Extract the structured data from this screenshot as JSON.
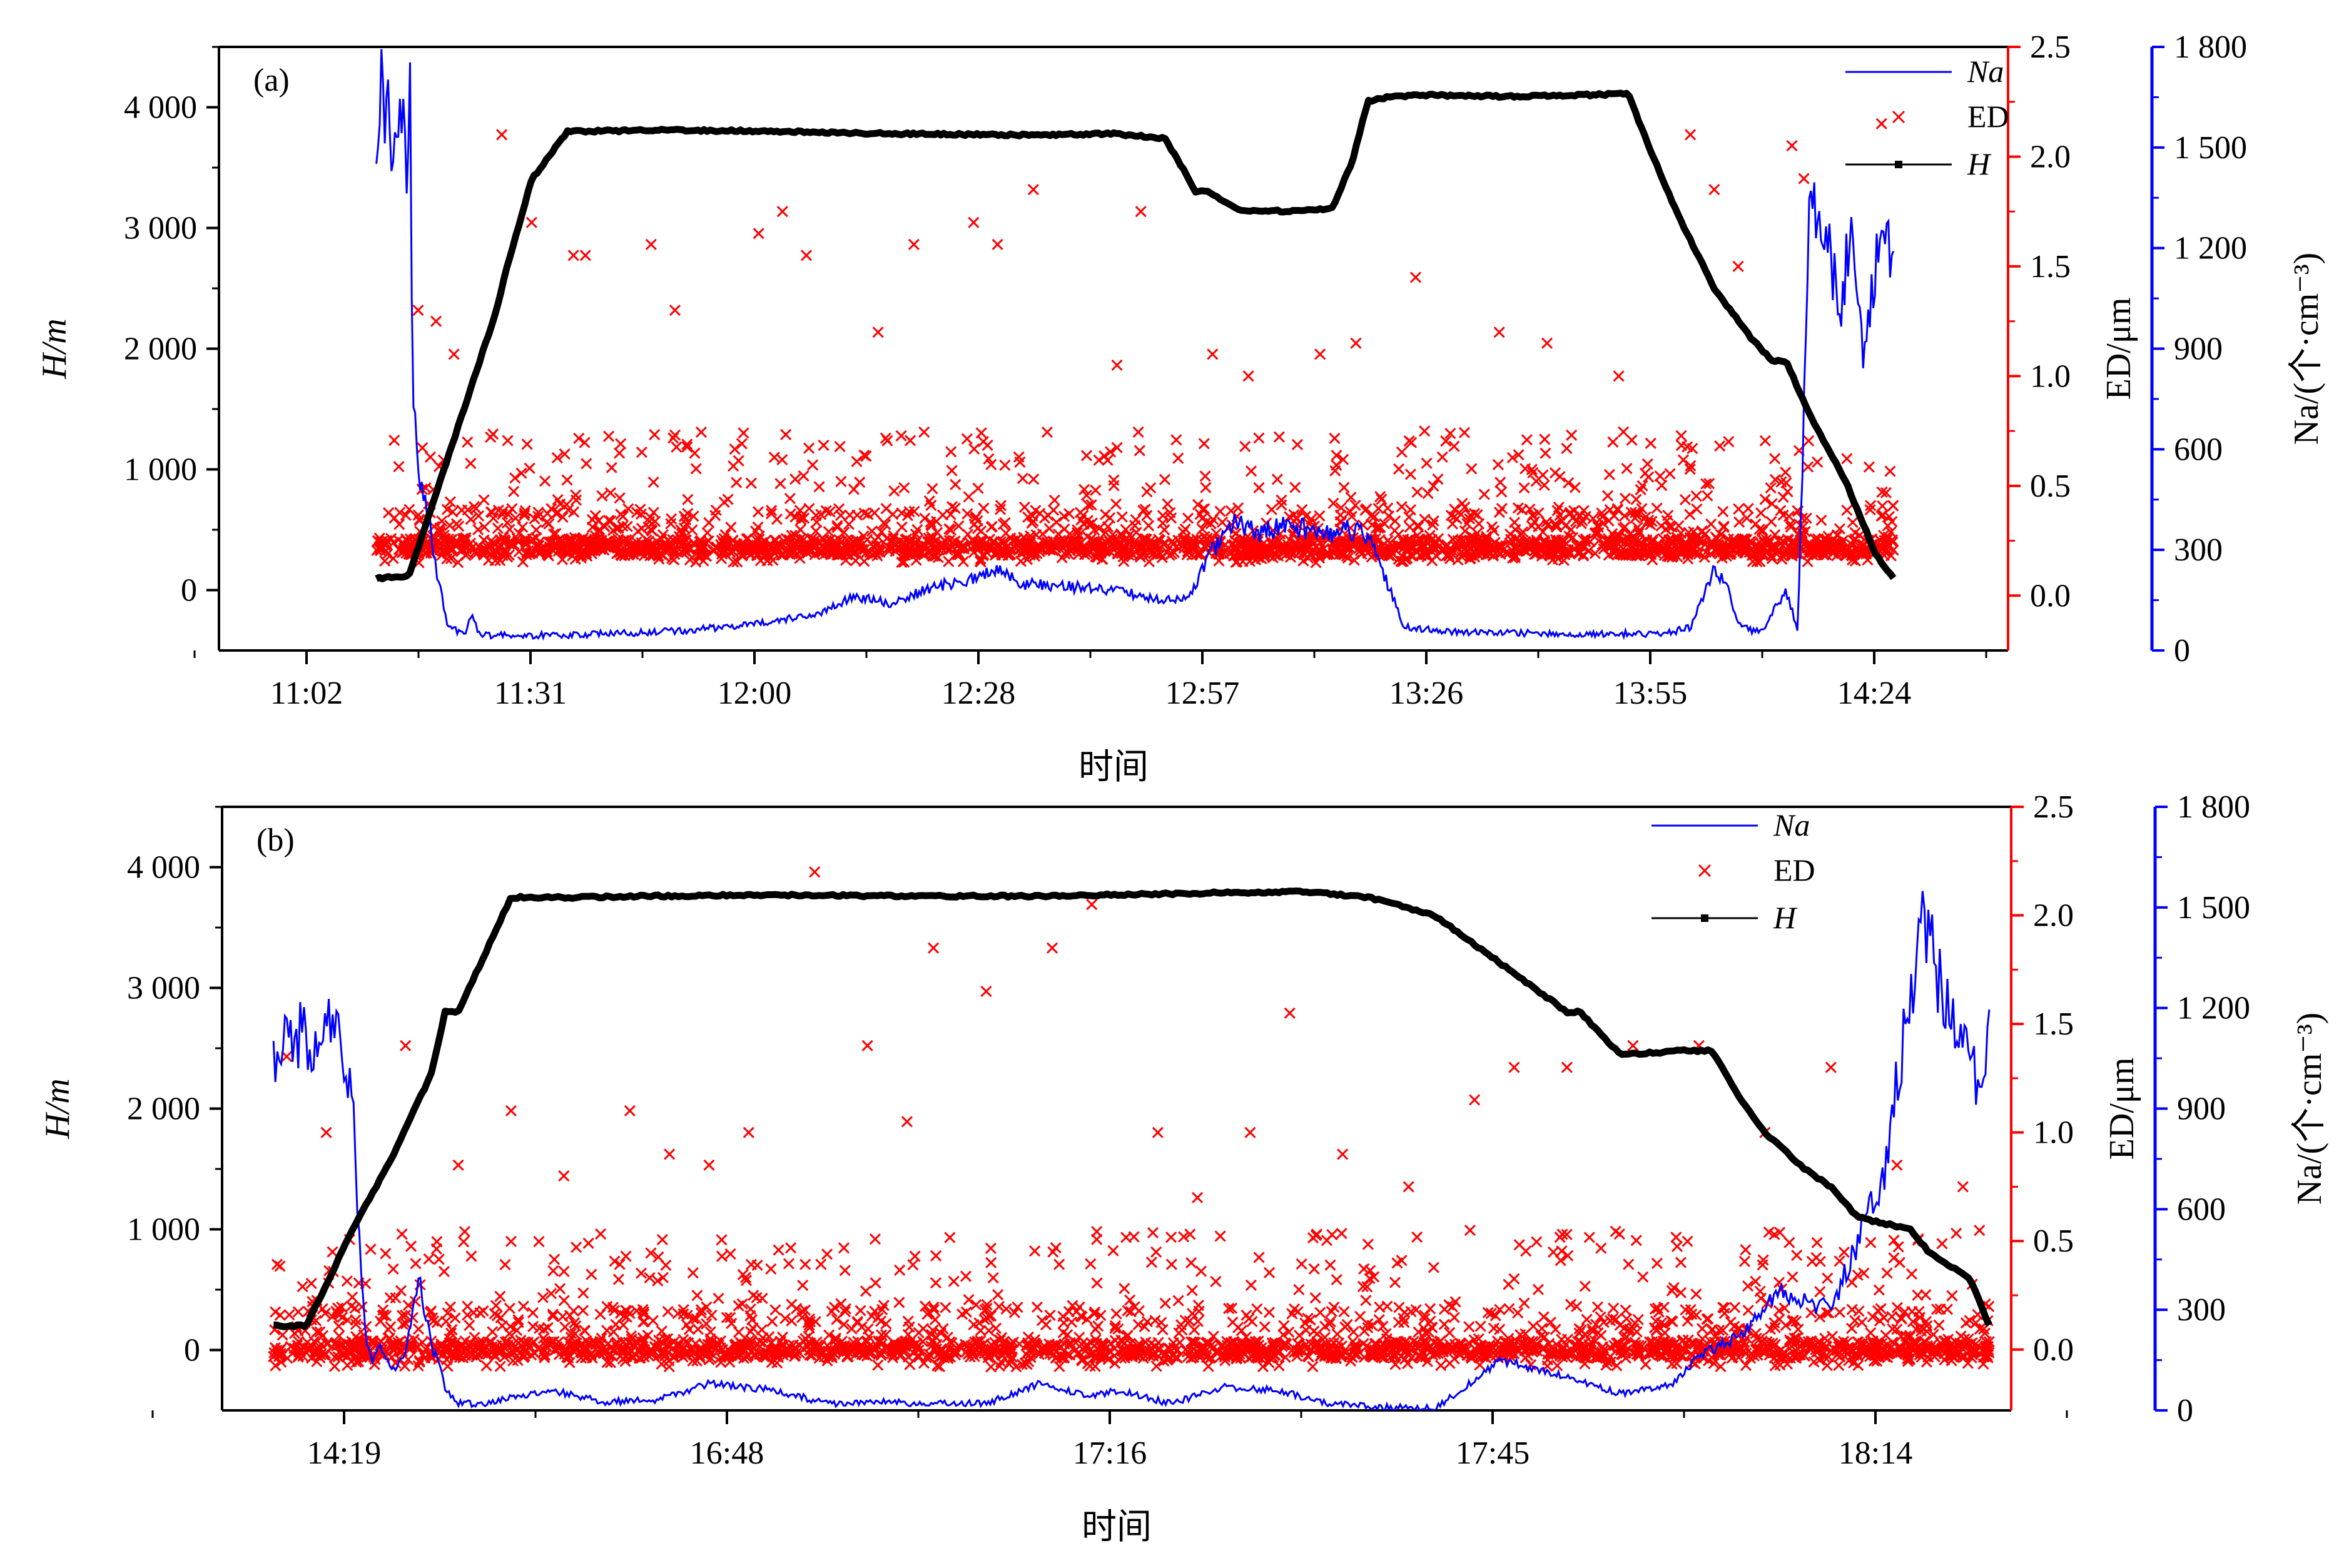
{
  "colors": {
    "Na": "#0000ff",
    "ED": "#ff0000",
    "H": "#000000",
    "axis": "#000000"
  },
  "chart_data": [
    {
      "type": "line",
      "panel_label": "(a)",
      "xlabel": "时间",
      "ylabel_left": "H/m",
      "ylabel_right1": "ED/μm",
      "ylabel_right2": "Na/(个·cm⁻³)",
      "x_ticks": [
        "11:02",
        "11:31",
        "12:00",
        "12:28",
        "12:57",
        "13:26",
        "13:55",
        "14:24"
      ],
      "x_range": [
        0,
        1350
      ],
      "y_left_ticks": [
        "0",
        "1 000",
        "2 000",
        "3 000",
        "4 000"
      ],
      "y_left_ticks_values": [
        0,
        1000,
        2000,
        3000,
        4000
      ],
      "y_left_range": [
        -500,
        4500
      ],
      "y_right1_ticks": [
        "0.0",
        "0.5",
        "1.0",
        "1.5",
        "2.0",
        "2.5"
      ],
      "y_right1_ticks_values": [
        0.0,
        0.5,
        1.0,
        1.5,
        2.0,
        2.5
      ],
      "y_right1_range": [
        -0.25,
        2.5
      ],
      "y_right2_ticks": [
        "0",
        "300",
        "600",
        "900",
        "1 200",
        "1 500",
        "1 800"
      ],
      "y_right2_ticks_values": [
        0,
        300,
        600,
        900,
        1200,
        1500,
        1800
      ],
      "y_right2_range": [
        0,
        1800
      ],
      "legend": {
        "placement": "top-right",
        "entries": [
          "Na",
          "ED",
          "H"
        ]
      },
      "series": [
        {
          "name": "H",
          "x": [
            60,
            87,
            100,
            120,
            140,
            160,
            170,
            190,
            220,
            300,
            400,
            500,
            600,
            680,
            720,
            738,
            745,
            757,
            768,
            780,
            790,
            800,
            830,
            860,
            877,
            890,
            910,
            940,
            1000,
            1050,
            1100,
            1108,
            1120,
            1150,
            1180,
            1210,
            1228,
            1240,
            1260,
            1290,
            1315,
            1330
          ],
          "y": [
            100,
            110,
            500,
            1100,
            1700,
            2300,
            2700,
            3400,
            3800,
            3810,
            3800,
            3780,
            3770,
            3780,
            3740,
            3450,
            3300,
            3300,
            3220,
            3160,
            3140,
            3140,
            3140,
            3160,
            3550,
            4050,
            4090,
            4100,
            4090,
            4095,
            4110,
            4120,
            3800,
            3100,
            2500,
            2100,
            1900,
            1900,
            1450,
            900,
            300,
            100
          ]
        },
        {
          "name": "Na",
          "x": [
            60,
            65,
            70,
            75,
            80,
            85,
            88,
            90,
            95,
            100,
            110,
            120,
            130,
            135,
            140,
            145,
            150,
            200,
            260,
            320,
            380,
            430,
            460,
            490,
            520,
            540,
            560,
            580,
            600,
            640,
            670,
            690,
            720,
            740,
            760,
            780,
            800,
            820,
            860,
            880,
            890,
            900,
            920,
            960,
            1050,
            1140,
            1160,
            1180,
            1190,
            1200,
            1210,
            1220,
            1240,
            1250,
            1260,
            1275,
            1285,
            1295,
            1305,
            1315,
            1330
          ],
          "y": [
            1560,
            1700,
            1600,
            1520,
            1650,
            1420,
            1780,
            800,
            500,
            480,
            240,
            70,
            55,
            50,
            120,
            50,
            45,
            45,
            50,
            60,
            80,
            110,
            160,
            140,
            180,
            200,
            210,
            240,
            200,
            190,
            180,
            170,
            150,
            160,
            300,
            380,
            350,
            370,
            350,
            360,
            330,
            260,
            70,
            55,
            50,
            50,
            70,
            240,
            200,
            80,
            60,
            60,
            180,
            60,
            1350,
            1200,
            1000,
            1300,
            900,
            1150,
            1200
          ]
        },
        {
          "name": "ED",
          "band": {
            "lower": 0.15,
            "upper": 0.4,
            "core": 0.22
          },
          "x": [
            95,
            110,
            125,
            165,
            190,
            225,
            235,
            290,
            310,
            380,
            400,
            420,
            480,
            510,
            560,
            580,
            610,
            680,
            700,
            760,
            790,
            850,
            880,
            930,
            1000,
            1040,
            1100,
            1160,
            1180,
            1200,
            1245,
            1255,
            1320
          ],
          "y": [
            1.3,
            1.25,
            1.1,
            2.1,
            1.7,
            1.55,
            1.55,
            1.6,
            1.3,
            1.65,
            1.75,
            1.55,
            1.2,
            1.6,
            1.7,
            1.6,
            1.85,
            1.05,
            1.75,
            1.1,
            1.0,
            1.1,
            1.15,
            1.45,
            1.2,
            1.15,
            1.0,
            2.1,
            1.85,
            1.5,
            2.05,
            1.9,
            2.15
          ]
        }
      ]
    },
    {
      "type": "line",
      "panel_label": "(b)",
      "xlabel": "时间",
      "ylabel_left": "H/m",
      "ylabel_right1": "ED/μm",
      "ylabel_right2": "Na/(个·cm⁻³)",
      "x_ticks": [
        "14:19",
        "16:48",
        "17:16",
        "17:45",
        "18:14"
      ],
      "x_range": [
        0,
        1320
      ],
      "y_left_ticks": [
        "0",
        "1 000",
        "2 000",
        "3 000",
        "4 000"
      ],
      "y_left_ticks_values": [
        0,
        1000,
        2000,
        3000,
        4000
      ],
      "y_left_range": [
        -500,
        4500
      ],
      "y_right1_ticks": [
        "0.0",
        "0.5",
        "1.0",
        "1.5",
        "2.0",
        "2.5"
      ],
      "y_right1_ticks_values": [
        0.0,
        0.5,
        1.0,
        1.5,
        2.0,
        2.5
      ],
      "y_right1_range": [
        -0.28,
        2.5
      ],
      "y_right2_ticks": [
        "0",
        "300",
        "600",
        "900",
        "1 200",
        "1 500",
        "1 800"
      ],
      "y_right2_ticks_values": [
        0,
        300,
        600,
        900,
        1200,
        1500,
        1800
      ],
      "y_right2_range": [
        0,
        1800
      ],
      "legend": {
        "placement": "top-right",
        "entries": [
          "Na",
          "ED",
          "H"
        ]
      },
      "series": [
        {
          "name": "H",
          "x": [
            20,
            45,
            80,
            110,
            140,
            150,
            160,
            200,
            250,
            300,
            400,
            500,
            600,
            700,
            800,
            850,
            900,
            950,
            1000,
            1010,
            1040,
            1060,
            1070,
            1080,
            1090,
            1110,
            1130,
            1150,
            1180,
            1200,
            1220,
            1240,
            1260,
            1275,
            1290,
            1305,
            1320
          ],
          "y": [
            200,
            200,
            1000,
            1600,
            2300,
            2800,
            2800,
            3750,
            3750,
            3760,
            3770,
            3760,
            3760,
            3780,
            3800,
            3750,
            3600,
            3200,
            2800,
            2800,
            2450,
            2460,
            2460,
            2480,
            2480,
            2480,
            2100,
            1800,
            1500,
            1350,
            1100,
            1050,
            1000,
            800,
            700,
            600,
            200
          ]
        },
        {
          "name": "Na",
          "x": [
            20,
            30,
            40,
            50,
            60,
            70,
            80,
            85,
            90,
            95,
            100,
            110,
            120,
            130,
            140,
            145,
            150,
            160,
            170,
            180,
            200,
            230,
            270,
            310,
            350,
            400,
            440,
            480,
            520,
            560,
            600,
            640,
            660,
            700,
            740,
            780,
            820,
            860,
            900,
            950,
            1000,
            1040,
            1080,
            1100,
            1130,
            1160,
            1200,
            1220,
            1240,
            1250,
            1260,
            1270,
            1280,
            1290,
            1300,
            1310,
            1320
          ],
          "y": [
            1050,
            1100,
            1120,
            1110,
            1150,
            1120,
            900,
            500,
            200,
            150,
            200,
            120,
            160,
            400,
            180,
            150,
            60,
            20,
            20,
            15,
            40,
            60,
            25,
            30,
            80,
            60,
            20,
            25,
            20,
            20,
            80,
            40,
            60,
            20,
            70,
            60,
            20,
            10,
            5,
            150,
            100,
            50,
            80,
            160,
            220,
            350,
            300,
            500,
            700,
            1000,
            1200,
            1500,
            1300,
            1200,
            1100,
            1000,
            1100
          ]
        },
        {
          "name": "ED",
          "band": {
            "lower": -0.08,
            "upper": 0.2,
            "core": 0.0
          },
          "x": [
            30,
            60,
            120,
            160,
            200,
            240,
            290,
            320,
            350,
            380,
            430,
            470,
            500,
            520,
            560,
            610,
            640,
            690,
            720,
            760,
            790,
            830,
            880,
            930,
            960,
            1000,
            1050,
            1100,
            1150,
            1200,
            1250,
            1300
          ],
          "y": [
            1.35,
            1.0,
            1.4,
            0.85,
            1.1,
            0.8,
            1.1,
            0.9,
            0.85,
            1.0,
            2.2,
            1.4,
            1.05,
            1.85,
            1.65,
            1.85,
            2.05,
            1.0,
            0.7,
            1.0,
            1.55,
            0.9,
            0.75,
            1.15,
            1.3,
            1.3,
            1.4,
            1.4,
            1.0,
            1.3,
            0.85,
            0.75
          ]
        }
      ]
    }
  ]
}
